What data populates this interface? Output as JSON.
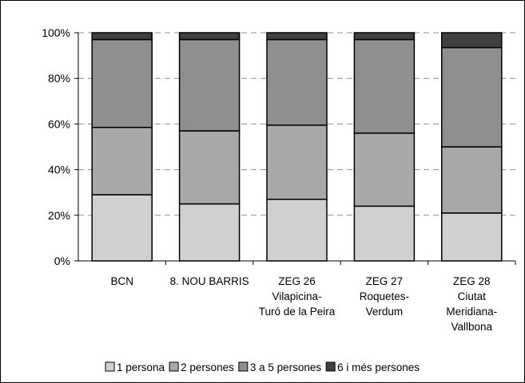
{
  "chart_data": {
    "type": "bar",
    "stacked": true,
    "percent": true,
    "categories": [
      [
        "BCN"
      ],
      [
        "8. NOU BARRIS"
      ],
      [
        "ZEG 26",
        "Vilapicina-",
        "Turó de la Peira"
      ],
      [
        "ZEG 27",
        "Roquetes-",
        "Verdum"
      ],
      [
        "ZEG 28",
        "Ciutat",
        "Meridiana-",
        "Vallbona"
      ]
    ],
    "series": [
      {
        "name": "1 persona",
        "color": "#d0d0d0",
        "values": [
          29,
          25,
          27,
          24,
          21
        ]
      },
      {
        "name": "2 persones",
        "color": "#a8a8a8",
        "values": [
          29.5,
          32,
          32.5,
          32,
          29
        ]
      },
      {
        "name": "3 a 5 persones",
        "color": "#8f8f8f",
        "values": [
          38.5,
          40,
          37.5,
          41,
          43.5
        ]
      },
      {
        "name": "6 i més persones",
        "color": "#404040",
        "values": [
          3,
          3,
          3,
          3,
          6.5
        ]
      }
    ],
    "ylim": [
      0,
      100
    ],
    "yticks": [
      "0%",
      "20%",
      "40%",
      "60%",
      "80%",
      "100%"
    ],
    "grid": true,
    "legend_position": "bottom"
  }
}
